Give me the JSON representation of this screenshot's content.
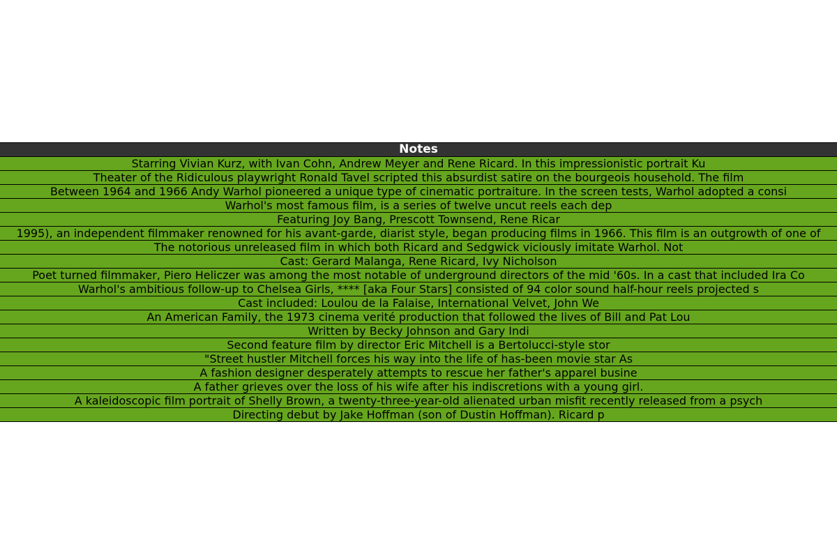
{
  "colors": {
    "header_bg": "#333333",
    "header_text": "#ffffff",
    "row_bg": "#66a61e",
    "row_text": "#000000",
    "border": "#000000"
  },
  "chart_data": {
    "type": "table",
    "columns": [
      "Notes"
    ],
    "rows": [
      [
        "Starring Vivian Kurz, with Ivan Cohn, Andrew Meyer and Rene Ricard. In this impressionistic portrait Ku"
      ],
      [
        "Theater of the Ridiculous playwright Ronald Tavel scripted this absurdist satire on the bourgeois household. The film"
      ],
      [
        "Between 1964 and 1966 Andy Warhol pioneered a unique type of cinematic portraiture. In the screen tests, Warhol adopted a consi"
      ],
      [
        "Warhol's most famous film, is a series of twelve uncut reels each dep"
      ],
      [
        "Featuring Joy Bang, Prescott Townsend, Rene Ricar"
      ],
      [
        "1995), an independent filmmaker renowned for his avant-garde, diarist style, began producing films in 1966. This film is an outgrowth of one of"
      ],
      [
        "The notorious unreleased film in which both Ricard and Sedgwick viciously imitate Warhol. Not"
      ],
      [
        "Cast: Gerard Malanga, Rene Ricard, Ivy Nicholson"
      ],
      [
        "Poet turned filmmaker, Piero Heliczer was among the most notable of underground directors of the mid '60s. In a cast that included Ira Co"
      ],
      [
        "Warhol's ambitious follow-up to Chelsea Girls, **** [aka Four Stars] consisted of 94 color sound half-hour reels projected s"
      ],
      [
        "Cast included: Loulou de la Falaise, International Velvet, John We"
      ],
      [
        "An American Family, the 1973 cinema verité production that followed the lives of Bill and Pat Lou"
      ],
      [
        "Written by Becky Johnson and Gary Indi"
      ],
      [
        "Second feature film by director Eric Mitchell is a Bertolucci-style stor"
      ],
      [
        "\"Street hustler Mitchell forces his way into the life of has-been movie star As"
      ],
      [
        "A fashion designer desperately attempts to rescue her father's apparel busine"
      ],
      [
        "A father grieves over the loss of his wife after his indiscretions with a young girl."
      ],
      [
        "A kaleidoscopic film portrait of Shelly Brown, a twenty-three-year-old alienated urban misfit recently released from a psych"
      ],
      [
        "Directing debut by Jake Hoffman (son of Dustin Hoffman). Ricard p"
      ]
    ]
  }
}
